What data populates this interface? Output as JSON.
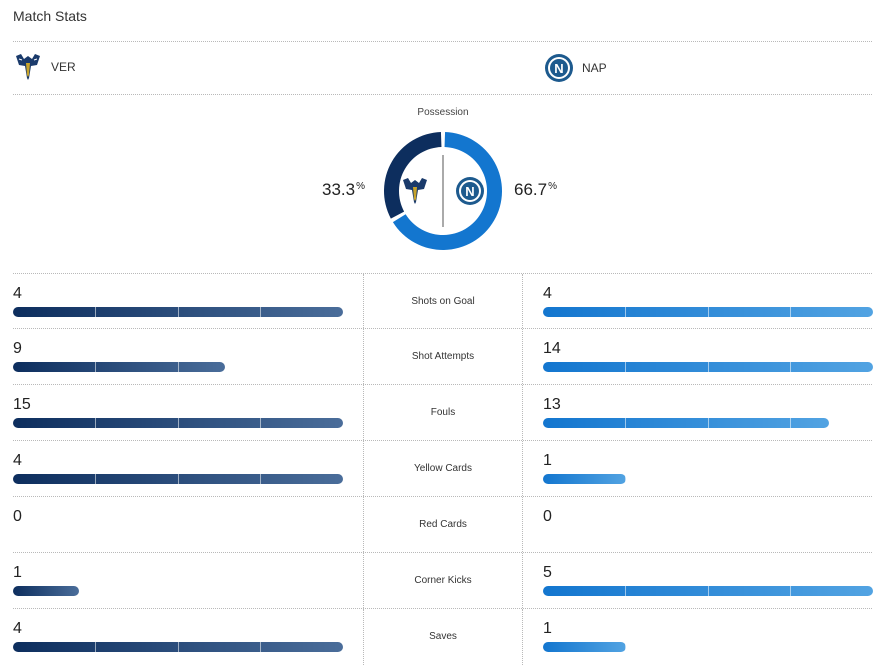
{
  "title": "Match Stats",
  "colors": {
    "home": "#0d2e5e",
    "home_light": "#4a6d9a",
    "away": "#1376cf",
    "away_light": "#52a3e2"
  },
  "teams": {
    "home": {
      "abbr": "VER",
      "logo_icon": "verona-crest-icon"
    },
    "away": {
      "abbr": "NAP",
      "logo_icon": "napoli-crest-icon"
    }
  },
  "possession": {
    "label": "Possession",
    "home_value": "33.3",
    "away_value": "66.7",
    "unit": "%"
  },
  "stats": [
    {
      "label": "Shots on Goal",
      "home": "4",
      "away": "4",
      "home_frac": 1.0,
      "away_frac": 1.0
    },
    {
      "label": "Shot Attempts",
      "home": "9",
      "away": "14",
      "home_frac": 0.643,
      "away_frac": 1.0
    },
    {
      "label": "Fouls",
      "home": "15",
      "away": "13",
      "home_frac": 1.0,
      "away_frac": 0.867
    },
    {
      "label": "Yellow Cards",
      "home": "4",
      "away": "1",
      "home_frac": 1.0,
      "away_frac": 0.25
    },
    {
      "label": "Red Cards",
      "home": "0",
      "away": "0",
      "home_frac": 0,
      "away_frac": 0
    },
    {
      "label": "Corner Kicks",
      "home": "1",
      "away": "5",
      "home_frac": 0.2,
      "away_frac": 1.0
    },
    {
      "label": "Saves",
      "home": "4",
      "away": "1",
      "home_frac": 1.0,
      "away_frac": 0.25
    }
  ]
}
